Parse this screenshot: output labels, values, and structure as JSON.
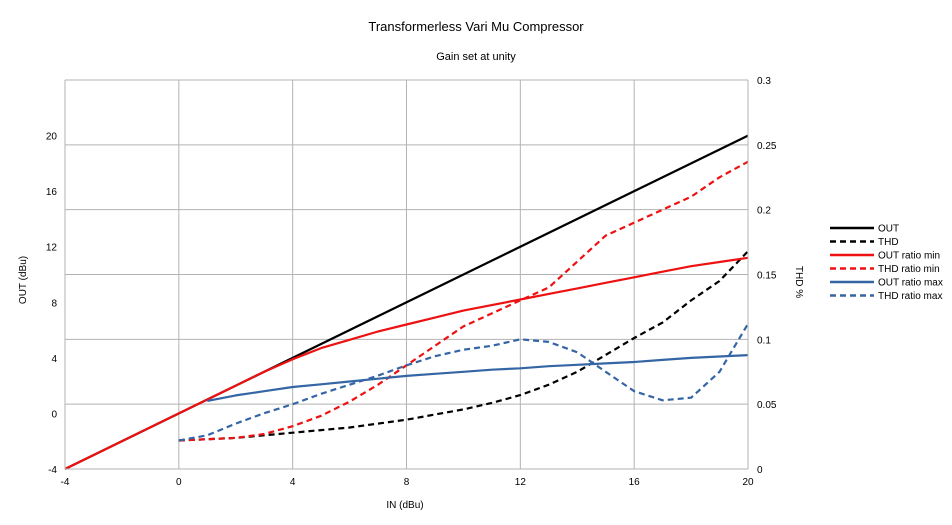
{
  "chart_data": {
    "type": "line",
    "title": "Transformerless Vari Mu Compressor",
    "subtitle": "Gain set at unity",
    "xlabel": "IN (dBu)",
    "ylabel": "OUT (dBu)",
    "y2label": "THD %",
    "xlim": [
      -4,
      20
    ],
    "ylim": [
      -4,
      24
    ],
    "y2lim": [
      0,
      0.3
    ],
    "xticks": [
      -4,
      0,
      4,
      8,
      12,
      16,
      20
    ],
    "yticks": [
      -4,
      0,
      4,
      8,
      12,
      16,
      20
    ],
    "y2ticks": [
      0,
      0.05,
      0.1,
      0.15,
      0.2,
      0.25,
      0.3
    ],
    "y2ticklabels": [
      "0",
      "0.05",
      "0.1",
      "0.15",
      "0.2",
      "0.25",
      "0.3"
    ],
    "grid": true,
    "legend_position": "right",
    "series": [
      {
        "name": "OUT",
        "axis": "left",
        "color": "#000000",
        "dash": false,
        "x": [
          -4,
          20
        ],
        "y": [
          -4,
          20
        ]
      },
      {
        "name": "THD",
        "axis": "right",
        "color": "#000000",
        "dash": true,
        "x": [
          0,
          1,
          2,
          3,
          4,
          5,
          6,
          7,
          8,
          9,
          10,
          11,
          12,
          13,
          14,
          15,
          16,
          17,
          18,
          19,
          20
        ],
        "y": [
          0.022,
          0.023,
          0.024,
          0.026,
          0.028,
          0.03,
          0.032,
          0.035,
          0.038,
          0.042,
          0.046,
          0.051,
          0.057,
          0.065,
          0.075,
          0.088,
          0.101,
          0.113,
          0.13,
          0.145,
          0.168
        ]
      },
      {
        "name": "OUT ratio min",
        "axis": "left",
        "color": "#ee1111",
        "dash": false,
        "x": [
          -4,
          0,
          1,
          2,
          3,
          4,
          5,
          6,
          7,
          8,
          9,
          10,
          11,
          12,
          13,
          14,
          15,
          16,
          17,
          18,
          19,
          20
        ],
        "y": [
          -4,
          0,
          1,
          2,
          3,
          3.9,
          4.7,
          5.3,
          5.9,
          6.4,
          6.9,
          7.4,
          7.8,
          8.2,
          8.6,
          9.0,
          9.4,
          9.8,
          10.2,
          10.6,
          10.9,
          11.2
        ]
      },
      {
        "name": "THD ratio min",
        "axis": "right",
        "color": "#ee1111",
        "dash": true,
        "x": [
          0,
          1,
          2,
          3,
          4,
          5,
          6,
          7,
          8,
          9,
          10,
          11,
          12,
          13,
          14,
          15,
          16,
          17,
          18,
          19,
          20
        ],
        "y": [
          0.022,
          0.023,
          0.024,
          0.027,
          0.033,
          0.041,
          0.052,
          0.065,
          0.08,
          0.095,
          0.11,
          0.12,
          0.13,
          0.14,
          0.16,
          0.18,
          0.19,
          0.2,
          0.21,
          0.225,
          0.237
        ]
      },
      {
        "name": "OUT ratio max",
        "axis": "left",
        "color": "#3465a4",
        "dash": false,
        "x": [
          1,
          2,
          3,
          4,
          5,
          6,
          7,
          8,
          9,
          10,
          11,
          12,
          13,
          14,
          15,
          16,
          17,
          18,
          19,
          20
        ],
        "y": [
          0.9,
          1.3,
          1.6,
          1.9,
          2.1,
          2.3,
          2.5,
          2.7,
          2.85,
          3.0,
          3.15,
          3.25,
          3.4,
          3.5,
          3.6,
          3.7,
          3.85,
          4.0,
          4.1,
          4.2
        ]
      },
      {
        "name": "THD ratio max",
        "axis": "right",
        "color": "#3465a4",
        "dash": true,
        "x": [
          0,
          1,
          2,
          3,
          4,
          5,
          6,
          7,
          8,
          9,
          10,
          11,
          12,
          13,
          14,
          15,
          16,
          17,
          18,
          19,
          20
        ],
        "y": [
          0.022,
          0.026,
          0.035,
          0.043,
          0.05,
          0.058,
          0.065,
          0.072,
          0.08,
          0.087,
          0.092,
          0.095,
          0.1,
          0.098,
          0.09,
          0.075,
          0.06,
          0.053,
          0.055,
          0.075,
          0.112
        ]
      }
    ]
  }
}
